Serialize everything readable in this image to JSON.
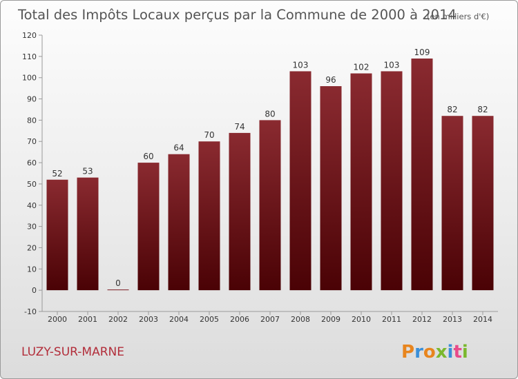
{
  "chart_data": {
    "type": "bar",
    "title": "Total des Impôts Locaux perçus par la Commune de 2000 à 2014",
    "unit_note": "(en milliers d'€)",
    "categories": [
      "2000",
      "2001",
      "2002",
      "2003",
      "2004",
      "2005",
      "2006",
      "2007",
      "2008",
      "2009",
      "2010",
      "2011",
      "2012",
      "2013",
      "2014"
    ],
    "values": [
      52,
      53,
      0,
      60,
      64,
      70,
      74,
      80,
      103,
      96,
      102,
      103,
      109,
      82,
      82
    ],
    "ylim": [
      -10,
      120
    ],
    "yticks": [
      -10,
      0,
      10,
      20,
      30,
      40,
      50,
      60,
      70,
      80,
      90,
      100,
      110,
      120
    ],
    "grid": false,
    "bar_color": "#7b1a22"
  },
  "commune": "LUZY-SUR-MARNE",
  "logo": {
    "text": "Proxiti",
    "colors": [
      "#e8851e",
      "#3a8fd8",
      "#e8851e",
      "#7bb82e",
      "#3a8fd8",
      "#e84b8a",
      "#7bb82e"
    ]
  }
}
